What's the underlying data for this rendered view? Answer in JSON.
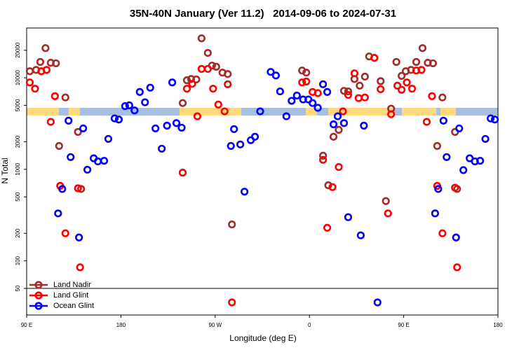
{
  "chart_data": {
    "type": "scatter",
    "title": "35N-40N January (Ver 11.2)   2014-09-06 to 2024-07-31",
    "x_label": "Longitude (deg E)",
    "y_label": "N Total",
    "xlim": [
      -270,
      180
    ],
    "xticks": [
      {
        "value": -270,
        "label": "90 E"
      },
      {
        "value": -180,
        "label": "180"
      },
      {
        "value": -90,
        "label": "90 W"
      },
      0,
      {
        "value": 90,
        "label": "90 E"
      },
      180
    ],
    "ylim": [
      50,
      35000
    ],
    "log_y": true,
    "yticks": [
      50,
      100,
      200,
      500,
      1000,
      2000,
      5000,
      10000,
      20000
    ],
    "legend": "bottom-left",
    "series": [
      {
        "name": "Land Nadir",
        "color": "#a52a2a",
        "x": [
          -267,
          -261,
          -257,
          -252,
          -247,
          -242,
          -239,
          -233,
          -221,
          -218,
          -121,
          -117,
          -113,
          -108,
          -103,
          -97,
          -93,
          -89,
          -83,
          -78,
          -74,
          -7,
          -3,
          13,
          18,
          23,
          28,
          33,
          37,
          43,
          48,
          53,
          57,
          62,
          68,
          73,
          78,
          83,
          88,
          92,
          97,
          102,
          108,
          113,
          118,
          122,
          127,
          139,
          141
        ],
        "values": [
          11800,
          12200,
          14900,
          21100,
          14600,
          14400,
          1800,
          6100,
          2560,
          610,
          5300,
          9400,
          9700,
          9600,
          27000,
          18700,
          13600,
          13200,
          11400,
          11000,
          250,
          12000,
          11400,
          1410,
          670,
          2270,
          2700,
          7200,
          7100,
          9700,
          8200,
          10300,
          17100,
          16500,
          9200,
          450,
          4600,
          14900,
          10500,
          11800,
          12200,
          14900,
          21100,
          14600,
          14400,
          1800,
          6100,
          2560,
          610
        ]
      },
      {
        "name": "Land Glint",
        "color": "#ff0000",
        "x": [
          -267,
          -262,
          -256,
          -251,
          -247,
          -243,
          -238,
          -233,
          -221,
          -219,
          -121,
          -117,
          -112,
          -107,
          -103,
          -97,
          -92,
          -87,
          -81,
          -78,
          -74,
          -7,
          -3,
          3,
          8,
          13,
          17,
          22,
          28,
          32,
          37,
          43,
          47,
          53,
          62,
          68,
          75,
          78,
          84,
          88,
          93,
          98,
          102,
          107,
          112,
          117,
          122,
          127,
          139,
          141
        ],
        "values": [
          8900,
          7600,
          11800,
          12200,
          3300,
          6300,
          660,
          200,
          620,
          85,
          920,
          7600,
          8600,
          3800,
          12500,
          12500,
          7600,
          5100,
          4300,
          8500,
          0,
          8900,
          9100,
          7000,
          6800,
          1270,
          230,
          640,
          1060,
          4300,
          6500,
          11200,
          6000,
          6100,
          16500,
          7500,
          330,
          4000,
          8200,
          7400,
          8900,
          7600,
          12000,
          12200,
          3300,
          6300,
          660,
          200,
          630,
          85
        ]
      },
      {
        "name": "Ocean Glint",
        "color": "#0000ff",
        "x": [
          -240,
          -236,
          -230,
          -228,
          -220,
          -216,
          -212,
          -206,
          -202,
          -196,
          -192,
          -186,
          -182,
          -176,
          -172,
          -167,
          -162,
          -157,
          -152,
          -147,
          -141,
          -136,
          -131,
          -127,
          -122,
          -75,
          -72,
          -66,
          -62,
          -56,
          -52,
          -47,
          -37,
          -32,
          -28,
          -22,
          -17,
          -12,
          -6,
          -1,
          3,
          8,
          13,
          17,
          23,
          27,
          33,
          37,
          49,
          52,
          65,
          120,
          123,
          128,
          131,
          140,
          143,
          147,
          153,
          158,
          163,
          168,
          173,
          177
        ],
        "values": [
          330,
          610,
          3400,
          1360,
          180,
          2800,
          990,
          1320,
          1220,
          1240,
          2150,
          3600,
          3500,
          4900,
          5000,
          4400,
          7000,
          5400,
          7800,
          2800,
          1680,
          3000,
          8900,
          3200,
          2850,
          1800,
          2750,
          1870,
          570,
          2080,
          2270,
          4300,
          11600,
          10600,
          7100,
          3800,
          5600,
          6400,
          5800,
          5800,
          5300,
          4700,
          8500,
          7000,
          3100,
          3800,
          3200,
          300,
          190,
          3000,
          0,
          330,
          610,
          3400,
          1360,
          180,
          2800,
          980,
          1320,
          1220,
          1240,
          2150,
          3600,
          3500
        ]
      }
    ]
  }
}
